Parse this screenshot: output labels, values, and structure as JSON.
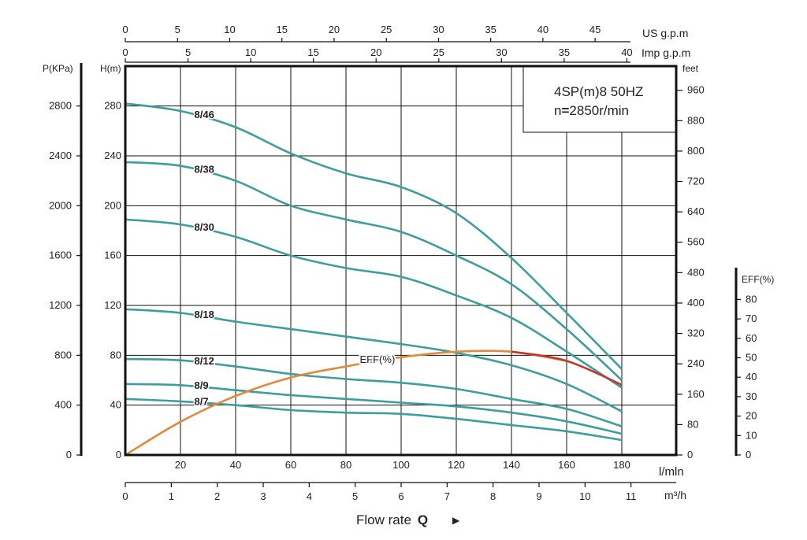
{
  "chart_data": {
    "type": "line",
    "title_line1": "4SP(m)8  50HZ",
    "title_line2_prefix": "n",
    "title_line2_eq": "=",
    "title_line2_value": "2850r/min",
    "x_lpm": {
      "label": "l/mln",
      "range": [
        0,
        180
      ],
      "ticks": [
        20,
        40,
        60,
        80,
        100,
        120,
        140,
        160,
        180
      ]
    },
    "x_m3h": {
      "label": "m³/h",
      "ticks": [
        0,
        1,
        2,
        3,
        4,
        5,
        6,
        7,
        8,
        9,
        10,
        11
      ]
    },
    "x_usgpm": {
      "label": "US g.p.m",
      "ticks": [
        0,
        5,
        10,
        15,
        20,
        25,
        30,
        35,
        40,
        45
      ]
    },
    "x_impgpm": {
      "label": "Imp g.p.m",
      "ticks": [
        0,
        5,
        10,
        15,
        20,
        25,
        30,
        35,
        40
      ]
    },
    "y_head_m": {
      "label": "H(m)",
      "range": [
        0,
        300
      ],
      "ticks": [
        0,
        40,
        80,
        120,
        160,
        200,
        240,
        280
      ]
    },
    "y_pressure": {
      "label": "P(KPa)",
      "ticks": [
        0,
        400,
        800,
        1200,
        1600,
        2000,
        2400,
        2800
      ]
    },
    "y_feet": {
      "label": "feet",
      "ticks": [
        0,
        80,
        160,
        240,
        320,
        400,
        480,
        560,
        640,
        720,
        800,
        880,
        960
      ]
    },
    "y_eff": {
      "label": "EFF(%)",
      "ticks": [
        0,
        10,
        20,
        30,
        40,
        50,
        60,
        70,
        80
      ]
    },
    "flow_label": "Flow rate",
    "flow_symbol": "Q",
    "flow_arrow": "▶",
    "series": [
      {
        "name": "8/46",
        "x": [
          0,
          20,
          40,
          60,
          80,
          100,
          120,
          140,
          160,
          180
        ],
        "y": [
          282,
          276,
          263,
          242,
          226,
          215,
          194,
          158,
          114,
          69
        ]
      },
      {
        "name": "8/38",
        "x": [
          0,
          20,
          40,
          60,
          80,
          100,
          120,
          140,
          160,
          180
        ],
        "y": [
          235,
          232,
          220,
          200,
          189,
          179,
          160,
          137,
          101,
          60
        ]
      },
      {
        "name": "8/30",
        "x": [
          0,
          20,
          40,
          60,
          80,
          100,
          120,
          140,
          160,
          180
        ],
        "y": [
          189,
          185,
          175,
          160,
          150,
          143,
          128,
          110,
          83,
          54
        ]
      },
      {
        "name": "8/18",
        "x": [
          0,
          20,
          40,
          60,
          80,
          100,
          120,
          140,
          160,
          180
        ],
        "y": [
          117,
          114,
          107,
          101,
          95,
          89,
          82,
          72,
          57,
          35
        ]
      },
      {
        "name": "8/12",
        "x": [
          0,
          20,
          40,
          60,
          80,
          100,
          120,
          140,
          160,
          180
        ],
        "y": [
          77,
          76,
          71,
          65,
          61,
          58,
          53,
          45,
          37,
          23
        ]
      },
      {
        "name": "8/9",
        "x": [
          0,
          20,
          40,
          60,
          80,
          100,
          120,
          140,
          160,
          180
        ],
        "y": [
          57,
          56,
          52,
          48,
          45,
          42,
          39,
          34,
          27,
          17
        ]
      },
      {
        "name": "8/7",
        "x": [
          0,
          20,
          40,
          60,
          80,
          100,
          120,
          140,
          160,
          180
        ],
        "y": [
          45,
          43,
          40,
          36,
          34,
          33,
          29,
          24,
          19,
          12
        ]
      }
    ],
    "efficiency": {
      "name": "EFF(%)",
      "x": [
        0,
        20,
        40,
        60,
        80,
        100,
        120,
        140,
        160,
        180
      ],
      "eff_pct": [
        0,
        18,
        32,
        42,
        48,
        53,
        56,
        56,
        51,
        38
      ]
    },
    "grid": true,
    "colors": {
      "head_curve": "#3e9d9d",
      "eff_curve": "#e08a3c",
      "eff_curve_end": "#c0392b",
      "axis": "#111111",
      "grid": "#111111"
    }
  }
}
